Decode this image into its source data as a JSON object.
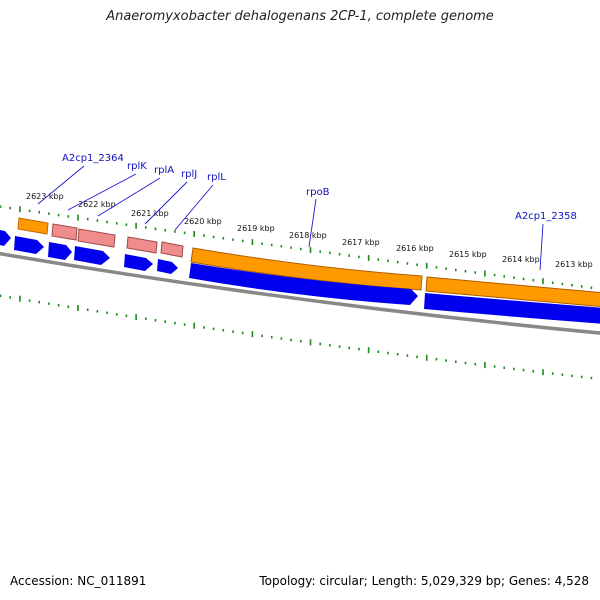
{
  "title": "Anaeromyxobacter dehalogenans 2CP-1, complete genome",
  "footer": {
    "accession": "Accession: NC_011891",
    "summary": "Topology: circular; Length: 5,029,329 bp; Genes: 4,528"
  },
  "colors": {
    "cds": "#0000ee",
    "gene": "#ff9900",
    "rrna": "#ef8c8c",
    "backbone": "#888888",
    "ticks": "#1a8a1a",
    "label_text": "#1010bb",
    "label_line": "#1a1ad0"
  },
  "ticks": [
    {
      "label": "2623 kbp"
    },
    {
      "label": "2622 kbp"
    },
    {
      "label": "2621 kbp"
    },
    {
      "label": "2620 kbp"
    },
    {
      "label": "2619 kbp"
    },
    {
      "label": "2618 kbp"
    },
    {
      "label": "2617 kbp"
    },
    {
      "label": "2616 kbp"
    },
    {
      "label": "2615 kbp"
    },
    {
      "label": "2614 kbp"
    },
    {
      "label": "2613 kbp"
    }
  ],
  "gene_labels": [
    {
      "name": "A2cp1_2364"
    },
    {
      "name": "rplK"
    },
    {
      "name": "rplA"
    },
    {
      "name": "rplJ"
    },
    {
      "name": "rplL"
    },
    {
      "name": "rpoB"
    },
    {
      "name": "A2cp1_2358"
    }
  ]
}
